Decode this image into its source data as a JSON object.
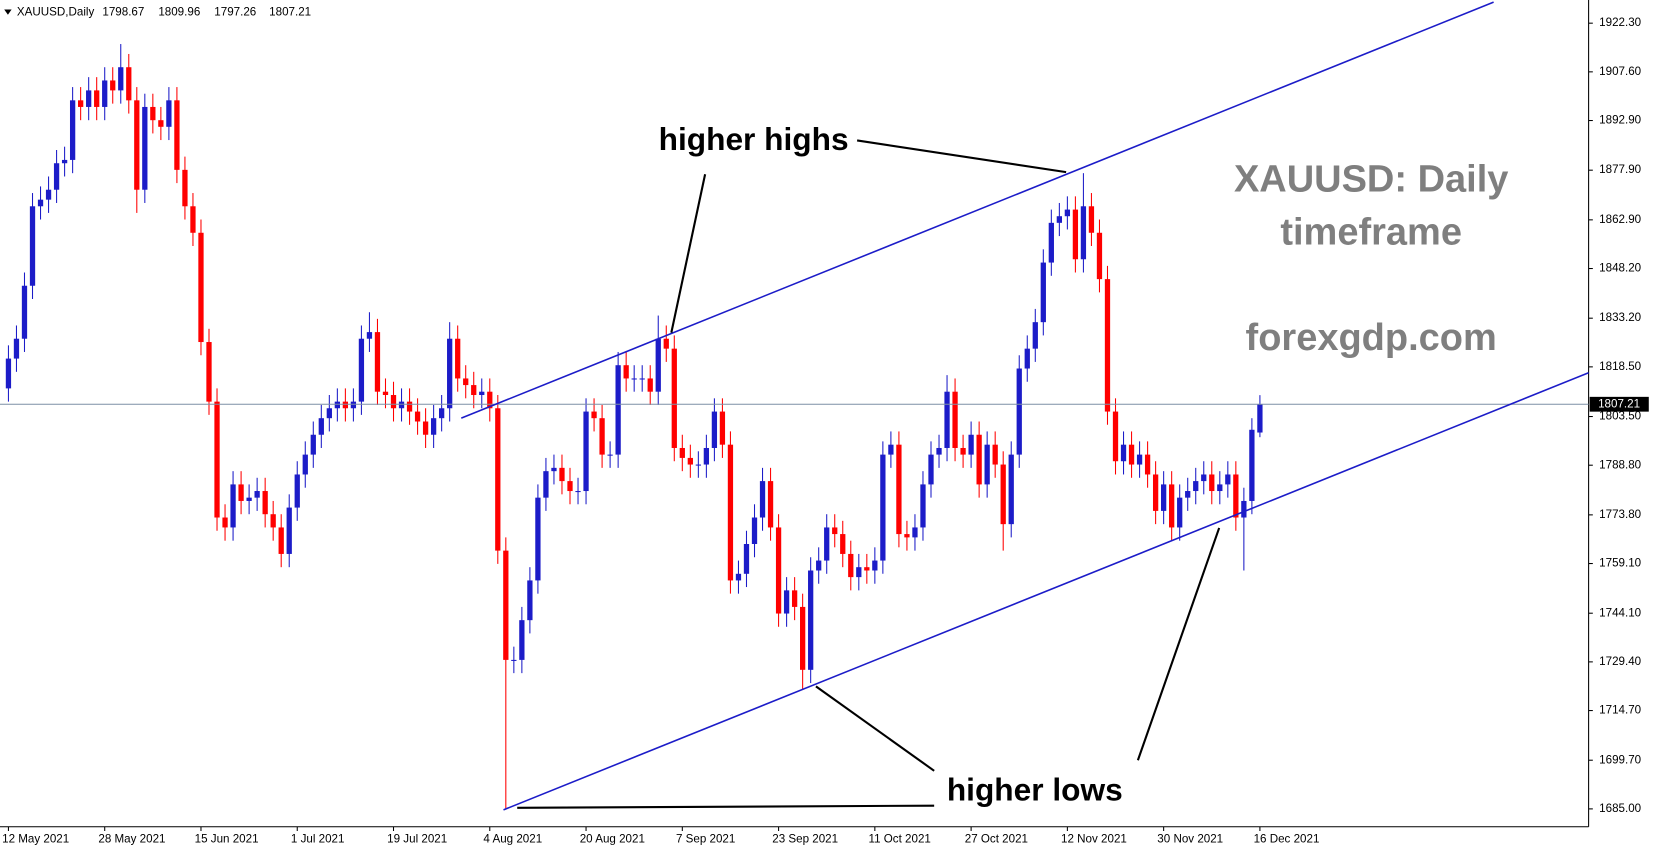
{
  "chart_data": {
    "type": "candlestick",
    "symbol": "XAUUSD,Daily",
    "annotations": [
      "higher highs",
      "higher lows",
      "XAUUSD: Daily",
      "timeframe",
      "forexgdp.com"
    ],
    "up_color": "#1c1cc8",
    "down_color": "#ff0000",
    "ylim": [
      1679.6,
      1929.3
    ],
    "yticks": [
      {
        "value": 1685,
        "label": "1685.00"
      },
      {
        "value": 1699.7,
        "label": "1699.70"
      },
      {
        "value": 1714.7,
        "label": "1714.70"
      },
      {
        "value": 1729.4,
        "label": "1729.40"
      },
      {
        "value": 1744.1,
        "label": "1744.10"
      },
      {
        "value": 1759.1,
        "label": "1759.10"
      },
      {
        "value": 1773.8,
        "label": "1773.80"
      },
      {
        "value": 1788.8,
        "label": "1788.80"
      },
      {
        "value": 1803.5,
        "label": "1803.50"
      },
      {
        "value": 1818.5,
        "label": "1818.50"
      },
      {
        "value": 1833.2,
        "label": "1833.20"
      },
      {
        "value": 1848.2,
        "label": "1848.20"
      },
      {
        "value": 1862.9,
        "label": "1862.90"
      },
      {
        "value": 1877.9,
        "label": "1877.90"
      },
      {
        "value": 1892.9,
        "label": "1892.90"
      },
      {
        "value": 1907.6,
        "label": "1907.60"
      },
      {
        "value": 1922.3,
        "label": "1922.30"
      }
    ],
    "categories": [
      "12 May 2021",
      null,
      null,
      null,
      null,
      null,
      null,
      null,
      null,
      null,
      null,
      null,
      "28 May 2021",
      null,
      null,
      null,
      null,
      null,
      null,
      null,
      null,
      null,
      null,
      null,
      "15 Jun 2021",
      null,
      null,
      null,
      null,
      null,
      null,
      null,
      null,
      null,
      null,
      null,
      "1 Jul 2021",
      null,
      null,
      null,
      null,
      null,
      null,
      null,
      null,
      null,
      null,
      null,
      "19 Jul 2021",
      null,
      null,
      null,
      null,
      null,
      null,
      null,
      null,
      null,
      null,
      null,
      "4 Aug 2021",
      null,
      null,
      null,
      null,
      null,
      null,
      null,
      null,
      null,
      null,
      null,
      "20 Aug 2021",
      null,
      null,
      null,
      null,
      null,
      null,
      null,
      null,
      null,
      null,
      null,
      "7 Sep 2021",
      null,
      null,
      null,
      null,
      null,
      null,
      null,
      null,
      null,
      null,
      null,
      "23 Sep 2021",
      null,
      null,
      null,
      null,
      null,
      null,
      null,
      null,
      null,
      null,
      null,
      "11 Oct 2021",
      null,
      null,
      null,
      null,
      null,
      null,
      null,
      null,
      null,
      null,
      null,
      "27 Oct 2021",
      null,
      null,
      null,
      null,
      null,
      null,
      null,
      null,
      null,
      null,
      null,
      "12 Nov 2021",
      null,
      null,
      null,
      null,
      null,
      null,
      null,
      null,
      null,
      null,
      null,
      "30 Nov 2021",
      null,
      null,
      null,
      null,
      null,
      null,
      null,
      null,
      null,
      null,
      null,
      "16 Dec 2021"
    ],
    "open": [
      1812,
      1821,
      1827,
      1843,
      1867,
      1869,
      1872,
      1880,
      1881,
      1899,
      1897,
      1902,
      1897,
      1905,
      1902,
      1909,
      1899,
      1872,
      1897,
      1893,
      1891,
      1899,
      1878,
      1867,
      1859,
      1826,
      1808,
      1773,
      1770,
      1783,
      1778,
      1779,
      1781,
      1774,
      1770,
      1762,
      1776,
      1786,
      1792,
      1798,
      1803,
      1806,
      1808,
      1806,
      1808,
      1827,
      1829,
      1811,
      1810,
      1806,
      1808,
      1805,
      1802,
      1798,
      1803,
      1806,
      1827,
      1815,
      1813,
      1810,
      1811,
      1806,
      1763,
      1730,
      1730,
      1742,
      1754,
      1779,
      1787,
      1788,
      1784,
      1781,
      1781,
      1805,
      1803,
      1792,
      1792,
      1819,
      1815,
      1815,
      1815,
      1811,
      1827,
      1824,
      1794,
      1791,
      1789,
      1789,
      1794,
      1805,
      1795,
      1754,
      1756,
      1765,
      1773,
      1784,
      1770,
      1744,
      1751,
      1746,
      1727,
      1757,
      1760,
      1770,
      1768,
      1762,
      1755,
      1758,
      1757,
      1760,
      1792,
      1795,
      1768,
      1767,
      1770,
      1783,
      1792,
      1794,
      1811,
      1794,
      1792,
      1798,
      1783,
      1795,
      1789,
      1771,
      1792,
      1818,
      1824,
      1832,
      1850,
      1862,
      1864,
      1866,
      1851,
      1867,
      1859,
      1845,
      1805,
      1790,
      1795,
      1789,
      1792,
      1786,
      1775,
      1783,
      1770,
      1779,
      1781,
      1784,
      1786,
      1781,
      1783,
      1786,
      1773,
      1778,
      1798.67
    ],
    "high": [
      1825,
      1831,
      1847,
      1871,
      1873,
      1876,
      1884,
      1885,
      1903,
      1903,
      1906,
      1906,
      1909,
      1909,
      1916,
      1913,
      1903,
      1901,
      1901,
      1897,
      1903,
      1903,
      1882,
      1871,
      1863,
      1830,
      1812,
      1777,
      1787,
      1787,
      1783,
      1785,
      1785,
      1778,
      1774,
      1780,
      1790,
      1796,
      1802,
      1807,
      1810,
      1812,
      1812,
      1812,
      1831,
      1835,
      1833,
      1815,
      1814,
      1812,
      1812,
      1809,
      1806,
      1807,
      1810,
      1832,
      1831,
      1819,
      1817,
      1815,
      1815,
      1810,
      1767,
      1734,
      1746,
      1758,
      1783,
      1791,
      1792,
      1792,
      1788,
      1785,
      1809,
      1809,
      1807,
      1796,
      1823,
      1823,
      1819,
      1819,
      1819,
      1834,
      1831,
      1828,
      1798,
      1795,
      1793,
      1798,
      1809,
      1809,
      1799,
      1760,
      1769,
      1777,
      1788,
      1788,
      1774,
      1755,
      1755,
      1750,
      1761,
      1764,
      1774,
      1774,
      1772,
      1766,
      1762,
      1762,
      1764,
      1796,
      1799,
      1799,
      1772,
      1774,
      1787,
      1796,
      1798,
      1816,
      1815,
      1798,
      1802,
      1802,
      1799,
      1799,
      1793,
      1796,
      1822,
      1828,
      1836,
      1854,
      1866,
      1868,
      1870,
      1870,
      1877,
      1871,
      1863,
      1849,
      1809,
      1799,
      1799,
      1796,
      1796,
      1790,
      1787,
      1787,
      1783,
      1785,
      1788,
      1790,
      1790,
      1787,
      1790,
      1790,
      1782,
      1803,
      1809.96
    ],
    "low": [
      1808,
      1817,
      1823,
      1839,
      1863,
      1865,
      1868,
      1876,
      1877,
      1893,
      1893,
      1893,
      1893,
      1898,
      1898,
      1895,
      1865,
      1868,
      1889,
      1887,
      1887,
      1874,
      1863,
      1855,
      1822,
      1804,
      1769,
      1766,
      1766,
      1774,
      1774,
      1775,
      1770,
      1766,
      1758,
      1758,
      1772,
      1782,
      1788,
      1794,
      1799,
      1802,
      1802,
      1802,
      1804,
      1823,
      1807,
      1806,
      1802,
      1802,
      1801,
      1798,
      1794,
      1794,
      1799,
      1802,
      1811,
      1809,
      1806,
      1806,
      1802,
      1759,
      1685,
      1726,
      1726,
      1738,
      1750,
      1775,
      1783,
      1780,
      1777,
      1777,
      1777,
      1799,
      1788,
      1788,
      1788,
      1811,
      1811,
      1811,
      1807,
      1807,
      1820,
      1790,
      1787,
      1785,
      1785,
      1785,
      1790,
      1791,
      1750,
      1750,
      1752,
      1761,
      1769,
      1766,
      1740,
      1740,
      1742,
      1721,
      1723,
      1753,
      1756,
      1764,
      1758,
      1751,
      1751,
      1753,
      1753,
      1756,
      1788,
      1764,
      1763,
      1763,
      1766,
      1779,
      1788,
      1790,
      1790,
      1788,
      1788,
      1779,
      1779,
      1785,
      1763,
      1767,
      1788,
      1814,
      1820,
      1828,
      1846,
      1858,
      1860,
      1847,
      1847,
      1855,
      1841,
      1801,
      1786,
      1786,
      1785,
      1785,
      1782,
      1771,
      1771,
      1766,
      1766,
      1775,
      1777,
      1780,
      1777,
      1777,
      1779,
      1769,
      1757,
      1774,
      1797.26
    ],
    "close": [
      1821,
      1827,
      1843,
      1867,
      1869,
      1872,
      1880,
      1881,
      1899,
      1897,
      1902,
      1897,
      1905,
      1902,
      1909,
      1899,
      1872,
      1897,
      1893,
      1891,
      1899,
      1878,
      1867,
      1859,
      1826,
      1808,
      1773,
      1770,
      1783,
      1778,
      1779,
      1781,
      1774,
      1770,
      1762,
      1776,
      1786,
      1792,
      1798,
      1803,
      1806,
      1808,
      1806,
      1808,
      1827,
      1829,
      1811,
      1810,
      1806,
      1808,
      1805,
      1802,
      1798,
      1803,
      1806,
      1827,
      1815,
      1813,
      1810,
      1811,
      1806,
      1763,
      1730,
      1730,
      1742,
      1754,
      1779,
      1787,
      1788,
      1784,
      1781,
      1781,
      1805,
      1803,
      1792,
      1792,
      1819,
      1815,
      1815,
      1815,
      1811,
      1827,
      1824,
      1794,
      1791,
      1789,
      1789,
      1794,
      1805,
      1795,
      1754,
      1756,
      1765,
      1773,
      1784,
      1770,
      1744,
      1751,
      1746,
      1727,
      1757,
      1760,
      1770,
      1768,
      1762,
      1755,
      1758,
      1757,
      1760,
      1792,
      1795,
      1768,
      1767,
      1770,
      1783,
      1792,
      1794,
      1811,
      1794,
      1792,
      1798,
      1783,
      1795,
      1789,
      1771,
      1792,
      1818,
      1824,
      1832,
      1850,
      1862,
      1864,
      1866,
      1851,
      1867,
      1859,
      1845,
      1805,
      1790,
      1795,
      1789,
      1792,
      1786,
      1775,
      1783,
      1770,
      1779,
      1781,
      1784,
      1786,
      1781,
      1783,
      1786,
      1773,
      1778,
      1799.5,
      1807.21
    ]
  }
}
